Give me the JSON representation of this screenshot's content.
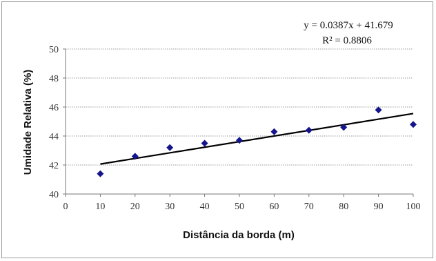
{
  "chart_data": {
    "type": "scatter",
    "xlabel": "Distância da borda (m)",
    "ylabel": "Umidade Relativa (%)",
    "xlim": [
      0,
      100
    ],
    "ylim": [
      40,
      50
    ],
    "xticks": [
      "0",
      "10",
      "20",
      "30",
      "40",
      "50",
      "60",
      "70",
      "80",
      "90",
      "100"
    ],
    "yticks": [
      "40",
      "42",
      "44",
      "46",
      "48",
      "50"
    ],
    "grid": "horizontal dotted",
    "marker_color": "#14148c",
    "trendline_color": "#000000",
    "equation": "y = 0.0387x + 41.679",
    "r_squared": "R² = 0.8806",
    "trendline": {
      "slope": 0.0387,
      "intercept": 41.679,
      "x_range": [
        10,
        100
      ]
    },
    "series": [
      {
        "x": [
          10,
          20,
          30,
          40,
          50,
          60,
          70,
          80,
          90,
          100
        ],
        "y": [
          41.4,
          42.6,
          43.2,
          43.5,
          43.7,
          44.3,
          44.4,
          44.6,
          45.8,
          44.8
        ]
      }
    ]
  }
}
